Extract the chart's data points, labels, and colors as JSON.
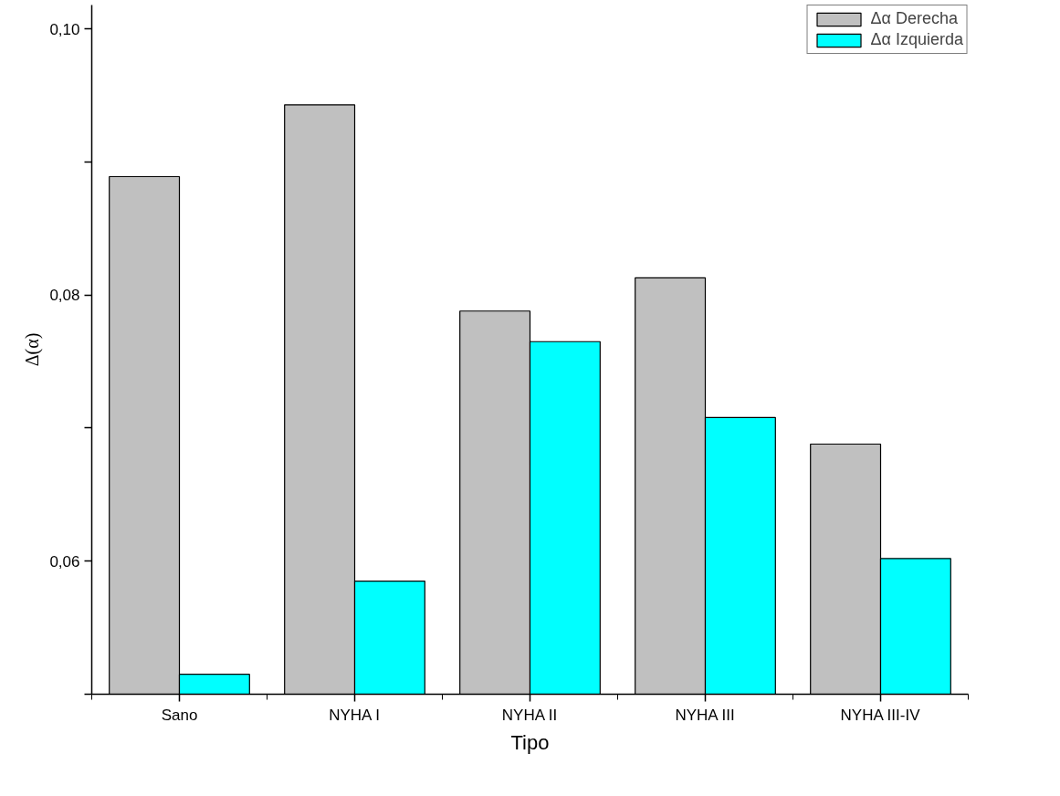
{
  "chart_data": {
    "type": "bar",
    "xlabel": "Tipo",
    "ylabel": "Δ(α)",
    "categories": [
      "Sano",
      "NYHA I",
      "NYHA II",
      "NYHA III",
      "NYHA III-IV"
    ],
    "series": [
      {
        "name": "Δα Derecha",
        "color": "#c0c0c0",
        "values": [
          0.0889,
          0.0943,
          0.0788,
          0.0813,
          0.0688
        ]
      },
      {
        "name": "Δα Izquierda",
        "color": "#00ffff",
        "values": [
          0.0515,
          0.0585,
          0.0765,
          0.0708,
          0.0602
        ]
      }
    ],
    "ylim": [
      0.05,
      0.1018
    ],
    "yticks": [
      {
        "value": 0.05,
        "label": null
      },
      {
        "value": 0.06,
        "label": "0,06"
      },
      {
        "value": 0.07,
        "label": null
      },
      {
        "value": 0.08,
        "label": "0,08"
      },
      {
        "value": 0.09,
        "label": null
      },
      {
        "value": 0.1,
        "label": "0,10"
      }
    ],
    "legend": "top right",
    "grid": false
  }
}
